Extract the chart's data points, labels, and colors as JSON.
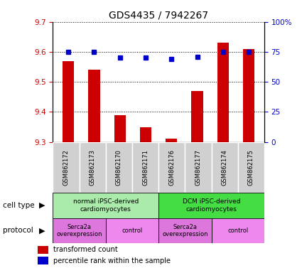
{
  "title": "GDS4435 / 7942267",
  "samples": [
    "GSM862172",
    "GSM862173",
    "GSM862170",
    "GSM862171",
    "GSM862176",
    "GSM862177",
    "GSM862174",
    "GSM862175"
  ],
  "transformed_counts": [
    9.57,
    9.54,
    9.39,
    9.35,
    9.31,
    9.47,
    9.63,
    9.61
  ],
  "percentile_ranks": [
    75,
    75,
    70,
    70,
    69,
    71,
    75,
    75
  ],
  "ylim_left": [
    9.3,
    9.7
  ],
  "ylim_right": [
    0,
    100
  ],
  "yticks_left": [
    9.3,
    9.4,
    9.5,
    9.6,
    9.7
  ],
  "yticks_right": [
    0,
    25,
    50,
    75,
    100
  ],
  "bar_color": "#cc0000",
  "dot_color": "#0000cc",
  "cell_type_groups": [
    {
      "label": "normal iPSC-derived\ncardiomyocytes",
      "start": 0,
      "end": 4,
      "color": "#aaeaaa"
    },
    {
      "label": "DCM iPSC-derived\ncardiomyocytes",
      "start": 4,
      "end": 8,
      "color": "#44dd44"
    }
  ],
  "protocol_groups": [
    {
      "label": "Serca2a\noverexpression",
      "start": 0,
      "end": 2,
      "color": "#dd77dd"
    },
    {
      "label": "control",
      "start": 2,
      "end": 4,
      "color": "#ee88ee"
    },
    {
      "label": "Serca2a\noverexpression",
      "start": 4,
      "end": 6,
      "color": "#dd77dd"
    },
    {
      "label": "control",
      "start": 6,
      "end": 8,
      "color": "#ee88ee"
    }
  ],
  "legend_red_label": "transformed count",
  "legend_blue_label": "percentile rank within the sample",
  "cell_type_label": "cell type",
  "protocol_label": "protocol",
  "left_axis_color": "#cc0000",
  "right_axis_color": "#0000cc",
  "sample_box_color": "#d0d0d0",
  "bar_width": 0.45
}
